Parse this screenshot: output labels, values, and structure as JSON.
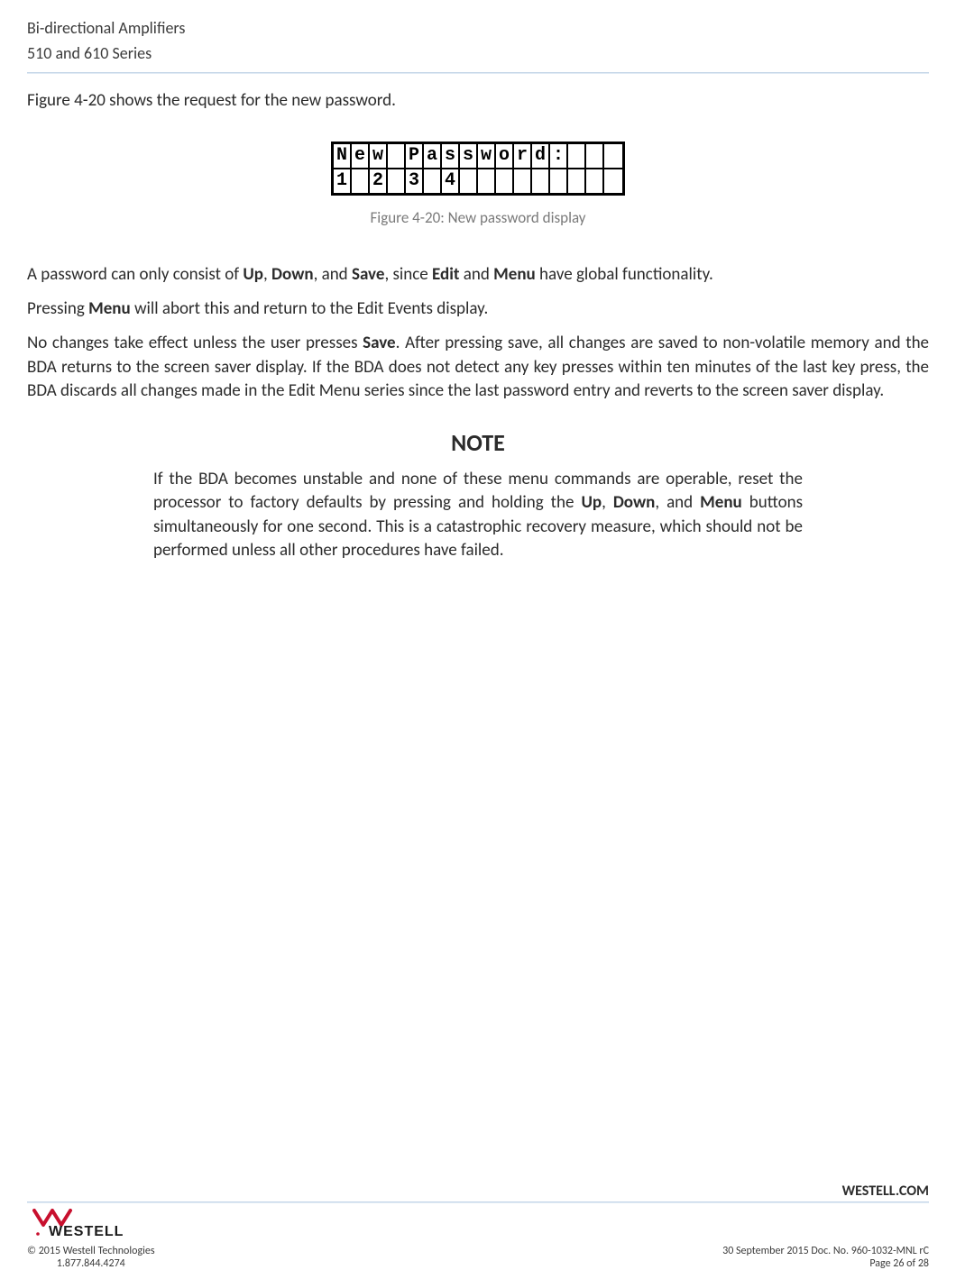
{
  "header": {
    "line1": "Bi-directional Amplifiers",
    "line2": "510 and 610 Series"
  },
  "intro": "Figure 4-20 shows the request for the new password.",
  "lcd": {
    "cols": 16,
    "rows": [
      [
        "N",
        "e",
        "w",
        "",
        "P",
        "a",
        "s",
        "s",
        "w",
        "o",
        "r",
        "d",
        ":",
        "",
        "",
        ""
      ],
      [
        "1",
        "",
        "2",
        "",
        "3",
        "",
        "4",
        "",
        "",
        "",
        "",
        "",
        "",
        "",
        "",
        ""
      ]
    ]
  },
  "figure_caption": "Figure 4-20: New password display",
  "paragraphs": {
    "p1_pre": "A password can only consist of ",
    "p1_b1": "Up",
    "p1_s1": ", ",
    "p1_b2": "Down",
    "p1_s2": ", and ",
    "p1_b3": "Save",
    "p1_s3": ", since ",
    "p1_b4": "Edit",
    "p1_s4": " and ",
    "p1_b5": "Menu",
    "p1_post": " have global functionality.",
    "p2_pre": "Pressing ",
    "p2_b1": "Menu",
    "p2_post": " will abort this and return to the Edit Events display.",
    "p3_pre": "No changes take effect unless the user presses ",
    "p3_b1": "Save",
    "p3_post": ".  After pressing save, all changes are saved to non-volatile memory and the BDA returns to the screen saver display.  If the BDA does not detect any key presses within ten minutes of the last key press, the BDA discards all changes made in the Edit Menu series since the last password entry and reverts to the screen saver display."
  },
  "note": {
    "title": "NOTE",
    "pre": "If the BDA becomes unstable and none of these menu commands are operable, reset the processor to factory defaults by pressing and holding the ",
    "b1": "Up",
    "s1": ", ",
    "b2": "Down",
    "s2": ", and ",
    "b3": "Menu",
    "post": " buttons simultaneously for one second.  This is a catastrophic recovery measure, which should not be performed unless all other procedures have failed."
  },
  "footer": {
    "brand_site": "WESTELL.COM",
    "left_line1": "© 2015 Westell Technologies",
    "left_line2": "1.877.844.4274",
    "right_line1": "30 September 2015 Doc. No. 960-1032-MNL rC",
    "right_line2": "Page 26 of 28",
    "logo_text": "WESTELL",
    "logo_accent": "#c8102e",
    "logo_text_color": "#1a1a1a"
  },
  "colors": {
    "text": "#2b2b2b",
    "muted": "#7a7a7a",
    "divider": "#c5d6e8",
    "accent": "#c8102e",
    "black": "#000000",
    "bg": "#ffffff"
  }
}
